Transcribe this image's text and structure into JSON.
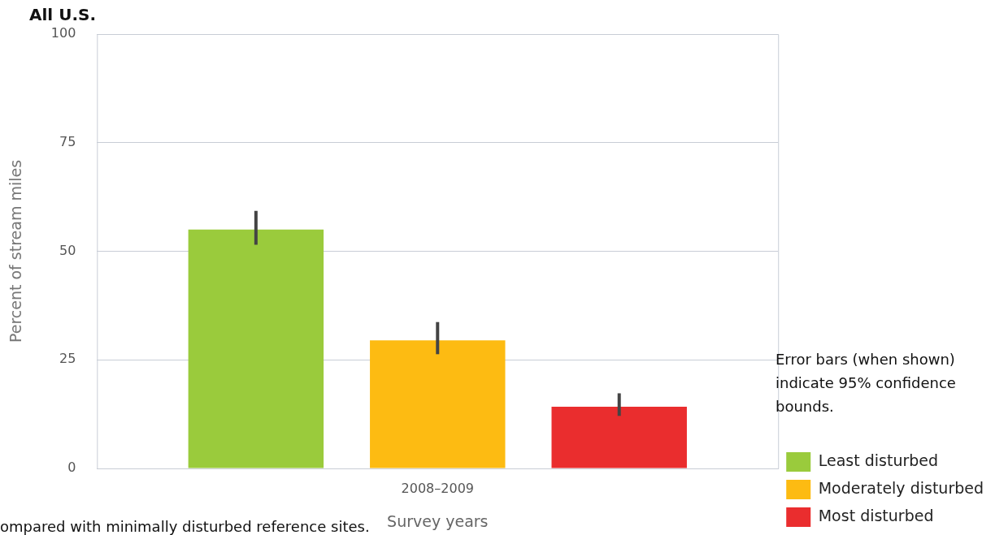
{
  "chart_data": {
    "type": "bar",
    "title": "All U.S.",
    "xlabel": "Survey years",
    "ylabel": "Percent of stream miles",
    "categories": [
      "2008–2009"
    ],
    "series": [
      {
        "name": "Least disturbed",
        "color": "#9acb3c",
        "values": [
          55
        ],
        "errors": [
          [
            51.5,
            59.3
          ]
        ]
      },
      {
        "name": "Moderately disturbed",
        "color": "#fdbb12",
        "values": [
          29.5
        ],
        "errors": [
          [
            26.3,
            33.7
          ]
        ]
      },
      {
        "name": "Most disturbed",
        "color": "#ea2d2e",
        "values": [
          14.2
        ],
        "errors": [
          [
            12.1,
            17.3
          ]
        ]
      }
    ],
    "ylim": [
      0,
      100
    ],
    "yticks": [
      0,
      25,
      50,
      75,
      100
    ],
    "grid": "y",
    "legend": "bottom right",
    "annotations": [
      "Error bars (when shown) indicate 95% confidence bounds.",
      "ompared with minimally disturbed reference sites."
    ]
  }
}
